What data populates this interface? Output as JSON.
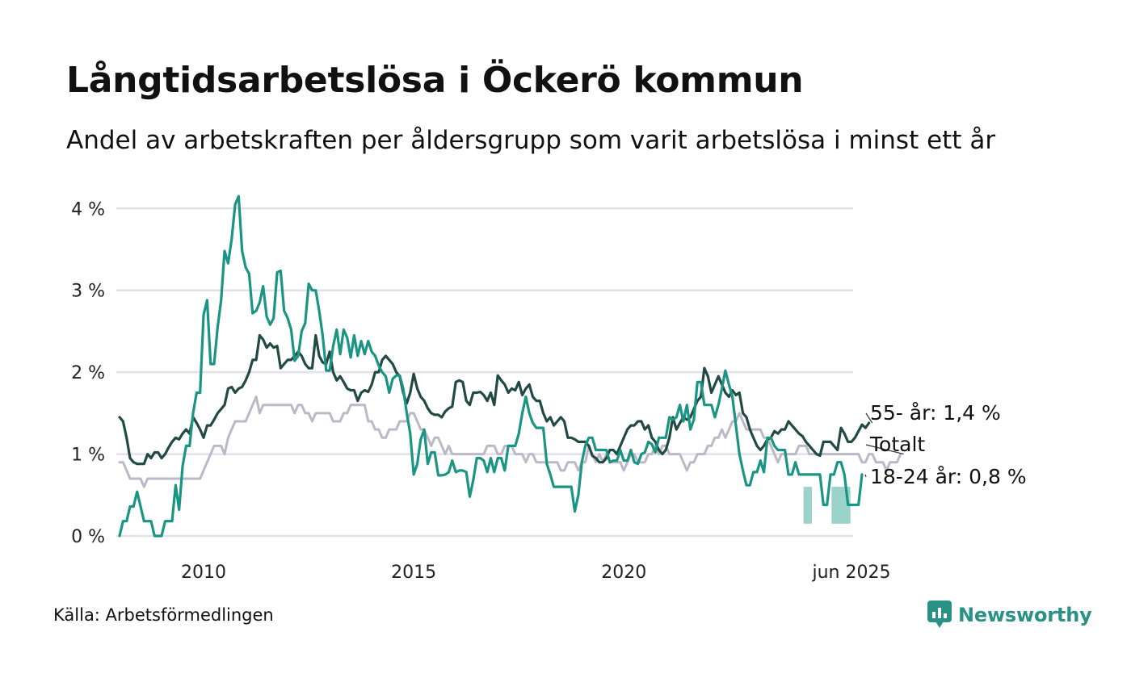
{
  "header": {
    "title": "Långtidsarbetslösa i Öckerö kommun",
    "subtitle": "Andel av arbetskraften per åldersgrupp som varit arbetslösa i minst ett år"
  },
  "footer": {
    "source": "Källa: Arbetsförmedlingen",
    "brand": "Newsworthy"
  },
  "colors": {
    "youth": "#1a9583",
    "senior": "#214a44",
    "total": "#bcb8c8",
    "band": "#9bd2c9",
    "grid": "#e2e0e8"
  },
  "chart_data": {
    "type": "line",
    "title": "Långtidsarbetslösa i Öckerö kommun",
    "subtitle": "Andel av arbetskraften per åldersgrupp som varit arbetslösa i minst ett år",
    "x_unit": "month",
    "x_start": "2008-01",
    "x_end": "2025-06",
    "xlim": [
      "2008-01",
      "2025-06"
    ],
    "ylim": [
      0,
      4.2
    ],
    "y_ticks": [
      0,
      1,
      2,
      3,
      4
    ],
    "y_tick_labels": [
      "0 %",
      "1 %",
      "2 %",
      "3 %",
      "4 %"
    ],
    "x_tick_labels": [
      {
        "x": "2010-01",
        "label": "2010"
      },
      {
        "x": "2015-01",
        "label": "2015"
      },
      {
        "x": "2020-01",
        "label": "2020"
      },
      {
        "x": "2025-06",
        "label": "jun 2025"
      }
    ],
    "grid": true,
    "legend": "end-labels",
    "end_labels": {
      "senior": "55- år: 1,4 %",
      "total": "Totalt",
      "youth": "18-24 år: 0,8 %"
    },
    "series": [
      {
        "key": "total",
        "values": [
          0.9,
          0.9,
          0.8,
          0.7,
          0.7,
          0.7,
          0.7,
          0.6,
          0.7,
          0.7,
          0.7,
          0.7,
          0.7,
          0.7,
          0.7,
          0.7,
          0.7,
          0.7,
          0.7,
          0.7,
          0.7,
          0.7,
          0.7,
          0.7,
          0.8,
          0.9,
          1.0,
          1.1,
          1.1,
          1.1,
          1.0,
          1.2,
          1.3,
          1.4,
          1.4,
          1.4,
          1.4,
          1.5,
          1.6,
          1.7,
          1.5,
          1.6,
          1.6,
          1.6,
          1.6,
          1.6,
          1.6,
          1.6,
          1.6,
          1.6,
          1.5,
          1.6,
          1.6,
          1.5,
          1.5,
          1.4,
          1.5,
          1.5,
          1.5,
          1.5,
          1.5,
          1.4,
          1.4,
          1.4,
          1.5,
          1.5,
          1.6,
          1.6,
          1.6,
          1.6,
          1.6,
          1.4,
          1.4,
          1.3,
          1.3,
          1.2,
          1.2,
          1.3,
          1.3,
          1.3,
          1.4,
          1.4,
          1.4,
          1.5,
          1.5,
          1.4,
          1.3,
          1.3,
          1.2,
          1.1,
          1.2,
          1.2,
          1.1,
          1.0,
          1.1,
          1.0,
          1.0,
          1.0,
          1.0,
          1.0,
          1.0,
          1.0,
          1.0,
          1.0,
          1.0,
          1.1,
          1.1,
          1.1,
          1.0,
          1.0,
          1.1,
          1.1,
          1.1,
          1.0,
          1.0,
          1.0,
          0.9,
          1.0,
          1.0,
          0.9,
          0.9,
          0.9,
          0.9,
          0.9,
          0.9,
          0.9,
          0.8,
          0.8,
          0.9,
          0.9,
          0.9,
          0.8,
          0.9,
          0.9,
          1.1,
          1.0,
          0.9,
          1.0,
          0.9,
          1.0,
          0.9,
          0.9,
          0.9,
          0.9,
          0.8,
          0.9,
          1.0,
          1.0,
          0.9,
          0.9,
          0.9,
          1.0,
          1.0,
          1.1,
          1.0,
          1.1,
          1.1,
          1.0,
          1.0,
          1.0,
          1.0,
          0.9,
          0.8,
          0.9,
          0.9,
          1.0,
          1.0,
          1.0,
          1.1,
          1.1,
          1.2,
          1.2,
          1.3,
          1.2,
          1.3,
          1.4,
          1.4,
          1.5,
          1.4,
          1.3,
          1.3,
          1.3,
          1.3,
          1.3,
          1.2,
          1.2,
          1.1,
          1.0,
          0.9,
          1.0,
          1.0,
          1.0,
          1.0,
          1.0,
          1.1,
          1.1,
          1.1,
          1.0,
          1.0,
          1.0,
          1.0,
          1.0,
          1.0,
          1.0,
          1.0,
          1.0,
          1.0,
          1.0,
          1.0,
          1.0,
          1.0,
          1.0,
          0.9,
          0.9,
          1.0,
          1.0,
          0.9,
          0.9,
          0.9,
          0.8,
          0.9,
          0.9,
          0.9,
          1.0
        ]
      },
      {
        "key": "senior",
        "values": [
          1.45,
          1.4,
          1.2,
          0.95,
          0.9,
          0.88,
          0.88,
          0.88,
          1.0,
          0.95,
          1.02,
          1.02,
          0.95,
          1.0,
          1.08,
          1.15,
          1.2,
          1.18,
          1.25,
          1.3,
          1.25,
          1.45,
          1.38,
          1.3,
          1.2,
          1.35,
          1.35,
          1.42,
          1.5,
          1.55,
          1.6,
          1.8,
          1.82,
          1.75,
          1.8,
          1.82,
          1.9,
          2.0,
          2.15,
          2.15,
          2.45,
          2.4,
          2.3,
          2.35,
          2.3,
          2.32,
          2.05,
          2.1,
          2.15,
          2.15,
          2.2,
          2.25,
          2.2,
          2.1,
          2.05,
          2.05,
          2.45,
          2.2,
          2.12,
          2.1,
          2.25,
          2.0,
          1.9,
          1.95,
          1.88,
          1.8,
          1.78,
          1.78,
          1.65,
          1.75,
          1.78,
          1.76,
          1.85,
          2.0,
          2.0,
          2.15,
          2.2,
          2.15,
          2.1,
          2.0,
          1.95,
          1.75,
          1.62,
          1.75,
          1.98,
          1.8,
          1.7,
          1.65,
          1.56,
          1.5,
          1.48,
          1.48,
          1.45,
          1.52,
          1.56,
          1.58,
          1.88,
          1.9,
          1.88,
          1.65,
          1.6,
          1.75,
          1.75,
          1.76,
          1.72,
          1.65,
          1.75,
          1.6,
          1.96,
          1.9,
          1.85,
          1.75,
          1.8,
          1.78,
          1.88,
          1.72,
          1.8,
          1.85,
          1.7,
          1.65,
          1.65,
          1.5,
          1.4,
          1.45,
          1.35,
          1.4,
          1.45,
          1.4,
          1.2,
          1.2,
          1.18,
          1.15,
          1.15,
          1.15,
          1.1,
          0.98,
          0.95,
          0.9,
          0.9,
          0.95,
          1.05,
          1.05,
          1.0,
          1.1,
          1.2,
          1.3,
          1.35,
          1.35,
          1.4,
          1.4,
          1.3,
          1.35,
          1.2,
          1.15,
          1.05,
          1.0,
          1.05,
          1.2,
          1.45,
          1.3,
          1.38,
          1.45,
          1.42,
          1.45,
          1.55,
          1.65,
          1.7,
          2.05,
          1.95,
          1.75,
          1.85,
          1.95,
          1.85,
          1.75,
          1.7,
          1.78,
          1.72,
          1.75,
          1.5,
          1.45,
          1.3,
          1.2,
          1.1,
          1.05,
          1.1,
          1.18,
          1.2,
          1.28,
          1.25,
          1.3,
          1.3,
          1.4,
          1.35,
          1.3,
          1.25,
          1.22,
          1.15,
          1.1,
          1.05,
          1.0,
          0.98,
          1.15,
          1.15,
          1.15,
          1.1,
          1.05,
          1.32,
          1.25,
          1.15,
          1.15,
          1.2,
          1.28,
          1.36,
          1.32,
          1.38
        ]
      },
      {
        "key": "youth",
        "values": [
          0.0,
          0.18,
          0.18,
          0.36,
          0.36,
          0.54,
          0.36,
          0.18,
          0.18,
          0.18,
          0.0,
          0.0,
          0.0,
          0.18,
          0.18,
          0.18,
          0.62,
          0.32,
          0.85,
          1.1,
          1.1,
          1.5,
          1.75,
          1.75,
          2.7,
          2.88,
          2.1,
          2.1,
          2.55,
          2.88,
          3.48,
          3.33,
          3.62,
          4.05,
          4.15,
          3.48,
          3.28,
          3.2,
          2.72,
          2.75,
          2.85,
          3.05,
          2.68,
          2.58,
          2.66,
          3.22,
          3.24,
          2.75,
          2.66,
          2.52,
          2.14,
          2.2,
          2.5,
          2.6,
          3.08,
          3.0,
          3.0,
          2.75,
          2.45,
          2.02,
          2.02,
          2.32,
          2.52,
          2.22,
          2.52,
          2.42,
          2.18,
          2.45,
          2.2,
          2.38,
          2.22,
          2.38,
          2.25,
          2.2,
          2.08,
          2.0,
          1.95,
          1.75,
          1.92,
          1.96,
          1.96,
          1.8,
          1.5,
          1.25,
          0.75,
          0.88,
          1.18,
          1.3,
          0.88,
          1.02,
          1.02,
          0.74,
          0.74,
          0.75,
          0.78,
          0.92,
          0.78,
          0.8,
          0.8,
          0.78,
          0.48,
          0.68,
          0.95,
          0.95,
          0.92,
          0.78,
          0.95,
          0.78,
          0.95,
          0.95,
          0.8,
          1.1,
          1.1,
          1.1,
          1.25,
          1.5,
          1.7,
          1.5,
          1.38,
          1.32,
          1.32,
          1.32,
          0.88,
          0.75,
          0.6,
          0.6,
          0.6,
          0.6,
          0.6,
          0.6,
          0.3,
          0.5,
          0.9,
          1.1,
          1.2,
          1.2,
          1.05,
          1.05,
          1.05,
          1.05,
          0.9,
          0.92,
          0.92,
          1.05,
          0.92,
          0.92,
          1.05,
          0.9,
          0.88,
          1.0,
          1.02,
          1.15,
          1.12,
          1.02,
          1.2,
          1.2,
          1.2,
          1.45,
          1.42,
          1.45,
          1.6,
          1.4,
          1.6,
          1.3,
          1.42,
          1.88,
          1.88,
          1.6,
          1.6,
          1.6,
          1.45,
          1.6,
          1.8,
          2.02,
          1.85,
          1.7,
          1.35,
          1.0,
          0.8,
          0.62,
          0.62,
          0.78,
          0.78,
          0.92,
          0.78,
          1.2,
          1.2,
          1.1,
          1.05,
          1.05,
          1.05,
          0.75,
          0.75,
          0.9,
          0.75,
          0.75,
          0.75,
          0.75,
          0.75,
          0.75,
          0.75,
          0.38,
          0.38,
          0.75,
          0.75,
          0.9,
          0.9,
          0.75,
          0.38,
          0.38,
          0.38,
          0.38,
          0.75
        ]
      }
    ],
    "uncertainty_band_youth": [
      {
        "x": "2024-05",
        "low": 0.15,
        "high": 0.6
      },
      {
        "x": "2024-06",
        "low": 0.15,
        "high": 0.6
      },
      {
        "x": "2025-01",
        "low": 0.15,
        "high": 0.6
      },
      {
        "x": "2025-02",
        "low": 0.15,
        "high": 0.6
      },
      {
        "x": "2025-03",
        "low": 0.15,
        "high": 0.6
      },
      {
        "x": "2025-04",
        "low": 0.15,
        "high": 0.6
      },
      {
        "x": "2025-05",
        "low": 0.15,
        "high": 0.6
      }
    ]
  }
}
